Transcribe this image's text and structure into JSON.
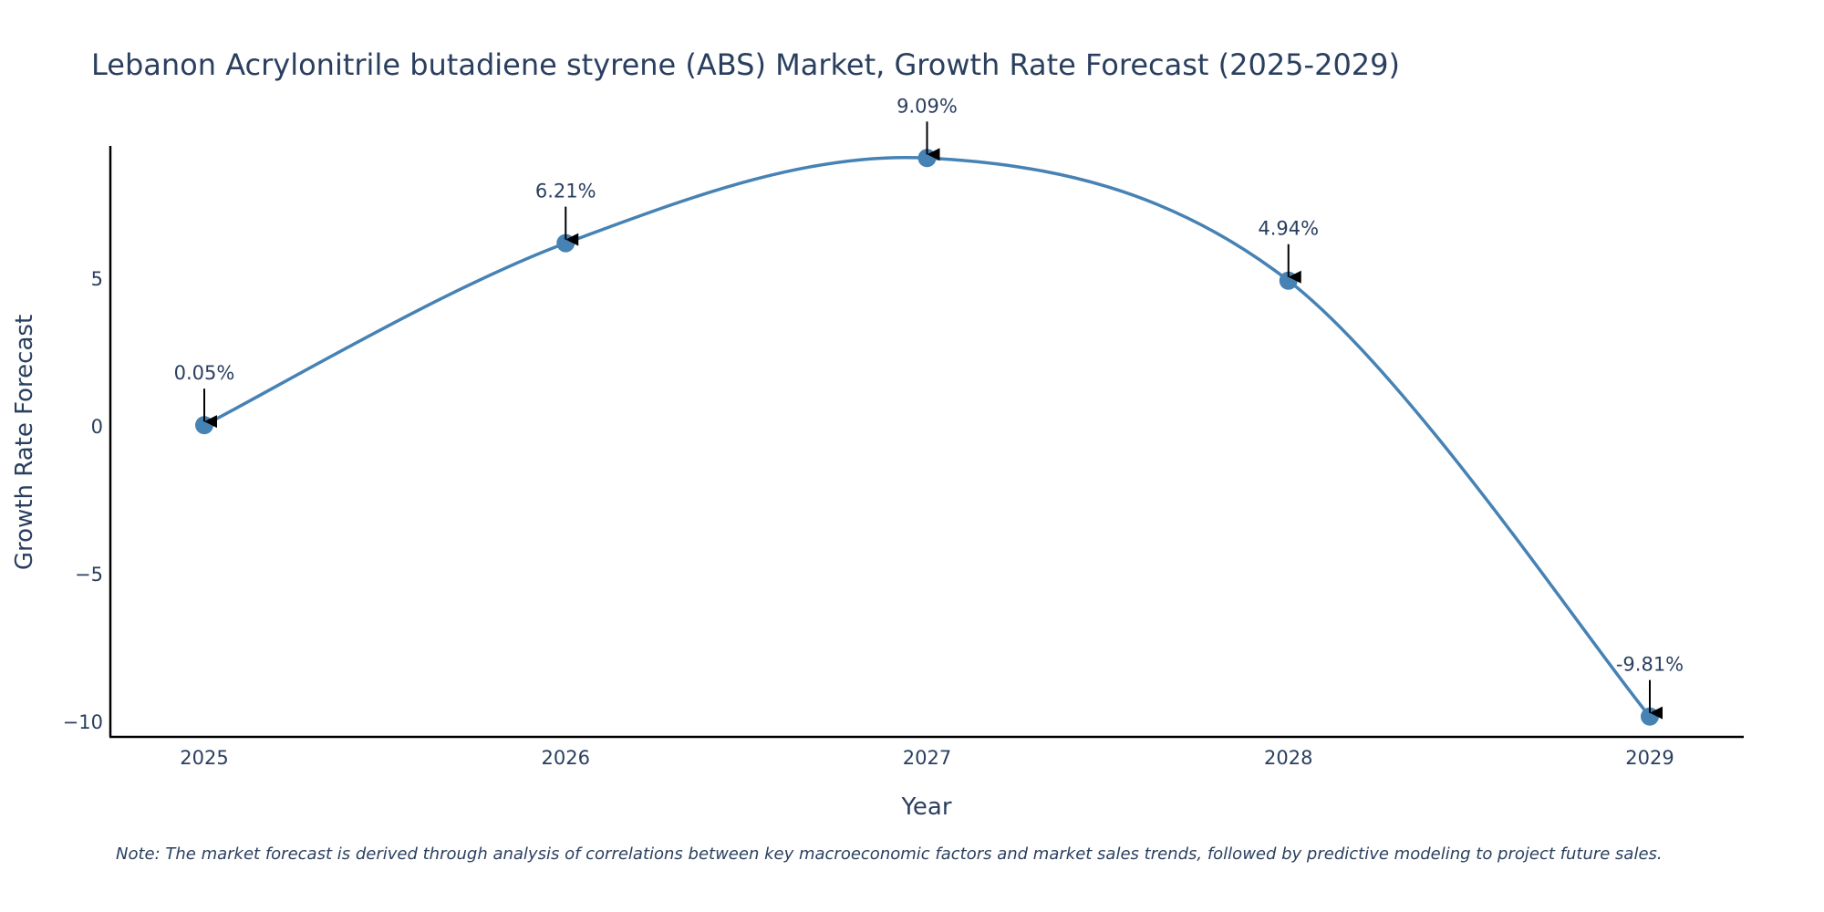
{
  "chart_data": {
    "type": "line",
    "title": "Lebanon Acrylonitrile butadiene styrene (ABS) Market, Growth Rate Forecast (2025-2029)",
    "xlabel": "Year",
    "ylabel": "Growth Rate Forecast",
    "categories": [
      "2025",
      "2026",
      "2027",
      "2028",
      "2029"
    ],
    "series": [
      {
        "name": "Growth Rate Forecast",
        "values": [
          0.05,
          6.21,
          9.09,
          4.94,
          -9.81
        ],
        "color": "#4682b4"
      }
    ],
    "data_labels": [
      "0.05%",
      "6.21%",
      "9.09%",
      "4.94%",
      "-9.81%"
    ],
    "y_ticks": [
      {
        "value": 5,
        "label": "5"
      },
      {
        "value": 0,
        "label": "0"
      },
      {
        "value": -5,
        "label": "−5"
      },
      {
        "value": -10,
        "label": "−10"
      }
    ],
    "ylim": [
      -10.5,
      9.5
    ],
    "grid": false,
    "legend": "none",
    "note": "Note: The market forecast is derived through analysis of correlations between key macroeconomic factors and market sales trends, followed by predictive modeling to project future sales."
  }
}
